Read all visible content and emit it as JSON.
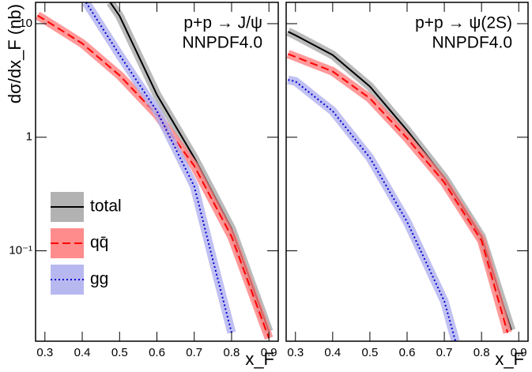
{
  "chart_data": [
    {
      "type": "line",
      "title": "p+p → J/ψ",
      "subtitle": "NNPDF4.0",
      "xlabel": "x_F",
      "ylabel": "dσ/dx_F (nb)",
      "xlim": [
        0.275,
        0.925
      ],
      "xticks": [
        0.3,
        0.4,
        0.5,
        0.6,
        0.7,
        0.8,
        0.9
      ],
      "ylim": [
        0.016,
        15.4
      ],
      "yticks": [
        {
          "value": 0.1,
          "label": "10⁻¹"
        },
        1,
        10
      ],
      "log_y": true,
      "legend": "lower left",
      "series": [
        {
          "name": "total",
          "color": "#000000",
          "band_color": "#aaaaaa",
          "dash": "solid",
          "x": [
            0.475,
            0.5,
            0.6,
            0.7,
            0.8,
            0.9
          ],
          "values": [
            15.4,
            11.7,
            2.37,
            0.66,
            0.156,
            0.0195
          ]
        },
        {
          "name": "qq̄",
          "color": "#ff0000",
          "band_color": "#ff8080",
          "dash": "dashed",
          "x": [
            0.28,
            0.3,
            0.4,
            0.5,
            0.6,
            0.7,
            0.8,
            0.9
          ],
          "values": [
            11.8,
            10.8,
            6.7,
            3.5,
            1.58,
            0.56,
            0.133,
            0.017
          ]
        },
        {
          "name": "gg",
          "color": "#0000cc",
          "band_color": "#b0b0f0",
          "dash": "dotted",
          "x": [
            0.41,
            0.5,
            0.6,
            0.7,
            0.75,
            0.8
          ],
          "values": [
            15.4,
            5.3,
            1.7,
            0.37,
            0.083,
            0.019
          ]
        }
      ]
    },
    {
      "type": "line",
      "title": "p+p → ψ(2S)",
      "subtitle": "NNPDF4.0",
      "xlabel": "x_F",
      "xlim": [
        0.275,
        0.925
      ],
      "xticks": [
        0.3,
        0.4,
        0.5,
        0.6,
        0.7,
        0.8,
        0.9
      ],
      "ylim": [
        0.016,
        15.4
      ],
      "yticks": [
        0.1,
        1,
        10
      ],
      "log_y": true,
      "series": [
        {
          "name": "total",
          "color": "#000000",
          "band_color": "#aaaaaa",
          "dash": "solid",
          "x": [
            0.28,
            0.3,
            0.4,
            0.5,
            0.6,
            0.7,
            0.8,
            0.88
          ],
          "values": [
            8.5,
            7.9,
            5.3,
            2.8,
            1.15,
            0.44,
            0.133,
            0.02
          ]
        },
        {
          "name": "qq̄",
          "color": "#ff0000",
          "band_color": "#ff8080",
          "dash": "dashed",
          "x": [
            0.28,
            0.3,
            0.4,
            0.5,
            0.6,
            0.7,
            0.8,
            0.87
          ],
          "values": [
            5.4,
            5.1,
            3.8,
            2.2,
            0.98,
            0.4,
            0.123,
            0.019
          ]
        },
        {
          "name": "gg",
          "color": "#0000cc",
          "band_color": "#b0b0f0",
          "dash": "dotted",
          "x": [
            0.28,
            0.3,
            0.4,
            0.5,
            0.6,
            0.7,
            0.73
          ],
          "values": [
            3.2,
            3.1,
            1.7,
            0.66,
            0.18,
            0.036,
            0.016
          ]
        }
      ]
    }
  ]
}
